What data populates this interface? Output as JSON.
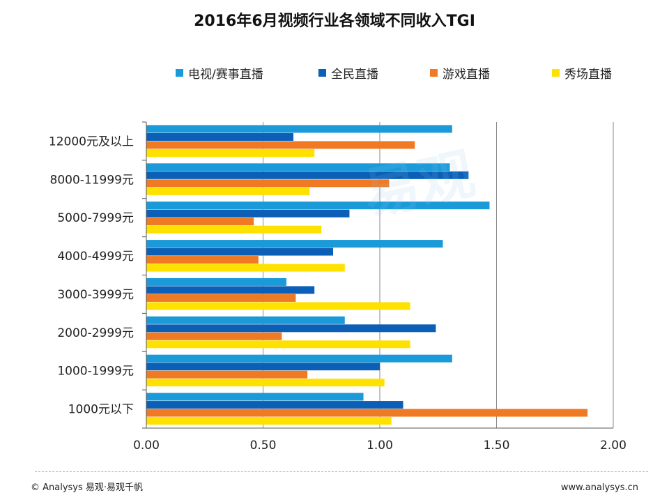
{
  "chart_data": {
    "type": "bar",
    "orientation": "horizontal",
    "title": "2016年6月视频行业各领域不同收入TGI",
    "categories": [
      "12000元及以上",
      "8000-11999元",
      "5000-7999元",
      "4000-4999元",
      "3000-3999元",
      "2000-2999元",
      "1000-1999元",
      "1000元以下"
    ],
    "series": [
      {
        "name": "电视/赛事直播",
        "color": "#1a9ad9",
        "values": [
          1.31,
          1.3,
          1.47,
          1.27,
          0.6,
          0.85,
          1.31,
          0.93
        ]
      },
      {
        "name": "全民直播",
        "color": "#0b5fb6",
        "values": [
          0.63,
          1.38,
          0.87,
          0.8,
          0.72,
          1.24,
          1.0,
          1.1
        ]
      },
      {
        "name": "游戏直播",
        "color": "#f07a23",
        "values": [
          1.15,
          1.04,
          0.46,
          0.48,
          0.64,
          0.58,
          0.69,
          1.89
        ]
      },
      {
        "name": "秀场直播",
        "color": "#ffe100",
        "values": [
          0.72,
          0.7,
          0.75,
          0.85,
          1.13,
          1.13,
          1.02,
          1.05
        ]
      }
    ],
    "xlim": [
      0,
      2.0
    ],
    "xticks": [
      0,
      0.5,
      1.0,
      1.5,
      2.0
    ],
    "xtick_labels": [
      "0.00",
      "0.50",
      "1.00",
      "1.50",
      "2.00"
    ],
    "xlabel": "",
    "ylabel": "",
    "legend_position": "top",
    "grid": true
  },
  "footer": {
    "copyright": "© Analysys 易观·易观千帆",
    "website": "www.analysys.cn"
  },
  "watermark": "易观"
}
